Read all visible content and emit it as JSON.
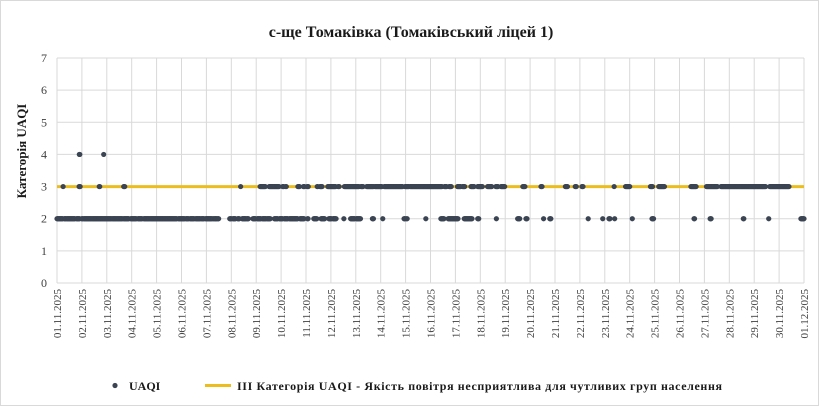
{
  "chart_data": {
    "type": "scatter",
    "title": "с-ще Томаківка (Томаківський ліцей 1)",
    "ylabel": "Категорія UAQI",
    "xlabel": "",
    "ylim": [
      0,
      7
    ],
    "yticks": [
      "0",
      "1",
      "2",
      "3",
      "4",
      "5",
      "6",
      "7"
    ],
    "x_tick_labels": [
      "01.11.2025",
      "02.11.2025",
      "03.11.2025",
      "04.11.2025",
      "05.11.2025",
      "06.11.2025",
      "07.11.2025",
      "08.11.2025",
      "09.11.2025",
      "10.11.2025",
      "11.11.2025",
      "12.11.2025",
      "13.11.2025",
      "14.11.2025",
      "15.11.2025",
      "16.11.2025",
      "17.11.2025",
      "18.11.2025",
      "19.11.2025",
      "20.11.2025",
      "21.11.2025",
      "22.11.2025",
      "23.11.2025",
      "24.11.2025",
      "25.11.2025",
      "26.11.2025",
      "27.11.2025",
      "28.11.2025",
      "29.11.2025",
      "30.11.2025",
      "01.12.2025"
    ],
    "grid": true,
    "legend_position": "bottom",
    "colors": {
      "uaqi": "#3b4452",
      "threshold": "#ecbd1f",
      "grid": "#d9d9d9"
    },
    "series": [
      {
        "name": "UAQI",
        "kind": "hourly points",
        "segments": [
          {
            "from": 0.0,
            "to": 4.4,
            "value": 2
          },
          {
            "from": 4.5,
            "to": 5.9,
            "value": 2
          },
          {
            "from": 7.0,
            "to": 8.8,
            "value": 2
          },
          {
            "from": 9.3,
            "to": 17.4,
            "value": 2
          },
          {
            "from": 18.8,
            "to": 21.9,
            "value": 2
          },
          {
            "from": 23.8,
            "to": 25.2,
            "value": 2
          },
          {
            "from": 25.8,
            "to": 33.6,
            "value": 2
          },
          {
            "from": 34.0,
            "to": 45.8,
            "value": 2
          },
          {
            "from": 46.0,
            "to": 52.9,
            "value": 2
          },
          {
            "from": 53.4,
            "to": 57.6,
            "value": 2
          },
          {
            "from": 58.0,
            "to": 63.0,
            "value": 2
          },
          {
            "from": 64.2,
            "to": 69.4,
            "value": 2
          },
          {
            "from": 71.0,
            "to": 76.9,
            "value": 2
          },
          {
            "from": 78.0,
            "to": 82.4,
            "value": 2
          },
          {
            "from": 83.6,
            "to": 89.2,
            "value": 2
          },
          {
            "from": 89.8,
            "to": 101.3,
            "value": 2
          },
          {
            "from": 101.6,
            "to": 108.7,
            "value": 2
          },
          {
            "from": 109.0,
            "to": 115.8,
            "value": 2
          },
          {
            "from": 117.0,
            "to": 123.0,
            "value": 2
          },
          {
            "from": 124.3,
            "to": 127.0,
            "value": 2
          },
          {
            "from": 128.2,
            "to": 132.2,
            "value": 2
          },
          {
            "from": 133.6,
            "to": 138.4,
            "value": 2
          },
          {
            "from": 139.2,
            "to": 141.8,
            "value": 2
          },
          {
            "from": 143.2,
            "to": 149.5,
            "value": 2
          },
          {
            "from": 150.3,
            "to": 151.0,
            "value": 2
          },
          {
            "from": 151.8,
            "to": 154.2,
            "value": 2
          },
          {
            "from": 154.8,
            "to": 156.0,
            "value": 2
          },
          {
            "from": 166.5,
            "to": 168.0,
            "value": 2
          },
          {
            "from": 169.5,
            "to": 172.0,
            "value": 2
          },
          {
            "from": 174.2,
            "to": 175.8,
            "value": 2
          },
          {
            "from": 178.5,
            "to": 182.4,
            "value": 2
          },
          {
            "from": 183.0,
            "to": 184.5,
            "value": 2
          },
          {
            "from": 188.8,
            "to": 191.5,
            "value": 2
          },
          {
            "from": 193.0,
            "to": 196.5,
            "value": 2
          },
          {
            "from": 198.0,
            "to": 200.0,
            "value": 2
          },
          {
            "from": 200.5,
            "to": 201.5,
            "value": 2
          },
          {
            "from": 202.6,
            "to": 206.0,
            "value": 2
          },
          {
            "from": 209.5,
            "to": 210.5,
            "value": 2
          },
          {
            "from": 211.2,
            "to": 213.0,
            "value": 2
          },
          {
            "from": 214.4,
            "to": 217.5,
            "value": 2
          },
          {
            "from": 219.0,
            "to": 222.8,
            "value": 2
          },
          {
            "from": 224.0,
            "to": 227.6,
            "value": 2
          },
          {
            "from": 228.0,
            "to": 232.0,
            "value": 2
          },
          {
            "from": 234.2,
            "to": 238.5,
            "value": 2
          },
          {
            "from": 241.5,
            "to": 242.0,
            "value": 2
          },
          {
            "from": 247.5,
            "to": 250.5,
            "value": 2
          },
          {
            "from": 254.5,
            "to": 258.0,
            "value": 2
          },
          {
            "from": 262.0,
            "to": 264.5,
            "value": 2
          },
          {
            "from": 266.0,
            "to": 269.0,
            "value": 2
          },
          {
            "from": 276.5,
            "to": 276.5,
            "value": 2
          },
          {
            "from": 283.0,
            "to": 287.0,
            "value": 2
          },
          {
            "from": 288.5,
            "to": 292.5,
            "value": 2
          },
          {
            "from": 304.0,
            "to": 305.0,
            "value": 2
          },
          {
            "from": 314.0,
            "to": 314.0,
            "value": 2
          },
          {
            "from": 334.5,
            "to": 335.5,
            "value": 2
          },
          {
            "from": 337.0,
            "to": 337.5,
            "value": 2
          },
          {
            "from": 355.5,
            "to": 355.5,
            "value": 2
          },
          {
            "from": 370.0,
            "to": 373.0,
            "value": 2
          },
          {
            "from": 377.0,
            "to": 386.5,
            "value": 2
          },
          {
            "from": 392.5,
            "to": 400.0,
            "value": 2
          },
          {
            "from": 405.5,
            "to": 406.5,
            "value": 2
          },
          {
            "from": 423.5,
            "to": 423.5,
            "value": 2
          },
          {
            "from": 444.0,
            "to": 446.0,
            "value": 2
          },
          {
            "from": 452.0,
            "to": 453.0,
            "value": 2
          },
          {
            "from": 469.0,
            "to": 469.0,
            "value": 2
          },
          {
            "from": 475.0,
            "to": 476.0,
            "value": 2
          },
          {
            "from": 512.0,
            "to": 512.0,
            "value": 2
          },
          {
            "from": 526.0,
            "to": 526.0,
            "value": 2
          },
          {
            "from": 532.0,
            "to": 533.0,
            "value": 2
          },
          {
            "from": 537.5,
            "to": 537.5,
            "value": 2
          },
          {
            "from": 554.5,
            "to": 554.5,
            "value": 2
          },
          {
            "from": 573.5,
            "to": 575.0,
            "value": 2
          },
          {
            "from": 614.0,
            "to": 614.5,
            "value": 2
          },
          {
            "from": 629.5,
            "to": 630.5,
            "value": 2
          },
          {
            "from": 661.5,
            "to": 662.0,
            "value": 2
          },
          {
            "from": 686.0,
            "to": 686.0,
            "value": 2
          },
          {
            "from": 717.0,
            "to": 720.0,
            "value": 2
          },
          {
            "from": 5.9,
            "to": 6.1,
            "value": 3
          },
          {
            "from": 21.3,
            "to": 22.6,
            "value": 3
          },
          {
            "from": 40.7,
            "to": 41.3,
            "value": 3
          },
          {
            "from": 64.3,
            "to": 65.5,
            "value": 3
          },
          {
            "from": 177.0,
            "to": 177.0,
            "value": 3
          },
          {
            "from": 195.8,
            "to": 201.0,
            "value": 3
          },
          {
            "from": 204.5,
            "to": 214.0,
            "value": 3
          },
          {
            "from": 217.5,
            "to": 218.5,
            "value": 3
          },
          {
            "from": 220.5,
            "to": 221.0,
            "value": 3
          },
          {
            "from": 232.2,
            "to": 234.0,
            "value": 3
          },
          {
            "from": 237.5,
            "to": 238.5,
            "value": 3
          },
          {
            "from": 241.2,
            "to": 242.5,
            "value": 3
          },
          {
            "from": 250.8,
            "to": 251.5,
            "value": 3
          },
          {
            "from": 253.5,
            "to": 255.5,
            "value": 3
          },
          {
            "from": 261.0,
            "to": 268.5,
            "value": 3
          },
          {
            "from": 271.0,
            "to": 272.0,
            "value": 3
          },
          {
            "from": 277.0,
            "to": 291.0,
            "value": 3
          },
          {
            "from": 293.0,
            "to": 295.0,
            "value": 3
          },
          {
            "from": 298.5,
            "to": 305.0,
            "value": 3
          },
          {
            "from": 306.5,
            "to": 313.0,
            "value": 3
          },
          {
            "from": 315.5,
            "to": 333.0,
            "value": 3
          },
          {
            "from": 335.5,
            "to": 339.0,
            "value": 3
          },
          {
            "from": 340.5,
            "to": 369.0,
            "value": 3
          },
          {
            "from": 369.5,
            "to": 371.0,
            "value": 3
          },
          {
            "from": 373.5,
            "to": 375.5,
            "value": 3
          },
          {
            "from": 378.0,
            "to": 380.0,
            "value": 3
          },
          {
            "from": 386.0,
            "to": 389.0,
            "value": 3
          },
          {
            "from": 391.0,
            "to": 393.0,
            "value": 3
          },
          {
            "from": 399.0,
            "to": 402.0,
            "value": 3
          },
          {
            "from": 405.5,
            "to": 410.0,
            "value": 3
          },
          {
            "from": 415.0,
            "to": 419.0,
            "value": 3
          },
          {
            "from": 423.0,
            "to": 425.0,
            "value": 3
          },
          {
            "from": 428.0,
            "to": 431.5,
            "value": 3
          },
          {
            "from": 449.0,
            "to": 451.0,
            "value": 3
          },
          {
            "from": 466.5,
            "to": 467.5,
            "value": 3
          },
          {
            "from": 490.0,
            "to": 492.0,
            "value": 3
          },
          {
            "from": 499.5,
            "to": 500.5,
            "value": 3
          },
          {
            "from": 506.0,
            "to": 507.0,
            "value": 3
          },
          {
            "from": 537.0,
            "to": 537.0,
            "value": 3
          },
          {
            "from": 548.0,
            "to": 552.0,
            "value": 3
          },
          {
            "from": 572.0,
            "to": 574.0,
            "value": 3
          },
          {
            "from": 580.0,
            "to": 585.5,
            "value": 3
          },
          {
            "from": 611.0,
            "to": 616.0,
            "value": 3
          },
          {
            "from": 626.0,
            "to": 636.5,
            "value": 3
          },
          {
            "from": 640.0,
            "to": 657.0,
            "value": 3
          },
          {
            "from": 657.5,
            "to": 683.0,
            "value": 3
          },
          {
            "from": 687.0,
            "to": 705.5,
            "value": 3
          },
          {
            "from": 21.5,
            "to": 22.0,
            "value": 4
          },
          {
            "from": 45.0,
            "to": 45.0,
            "value": 4
          }
        ]
      },
      {
        "name": "ІІІ Категорія UAQI - Якість повітря несприятлива для чутливих груп населення",
        "kind": "threshold line",
        "value": 3
      }
    ]
  },
  "legend": {
    "uaqi_label": "UAQI",
    "threshold_label": "ІІІ Категорія UAQI - Якість повітря несприятлива для чутливих груп населення"
  }
}
